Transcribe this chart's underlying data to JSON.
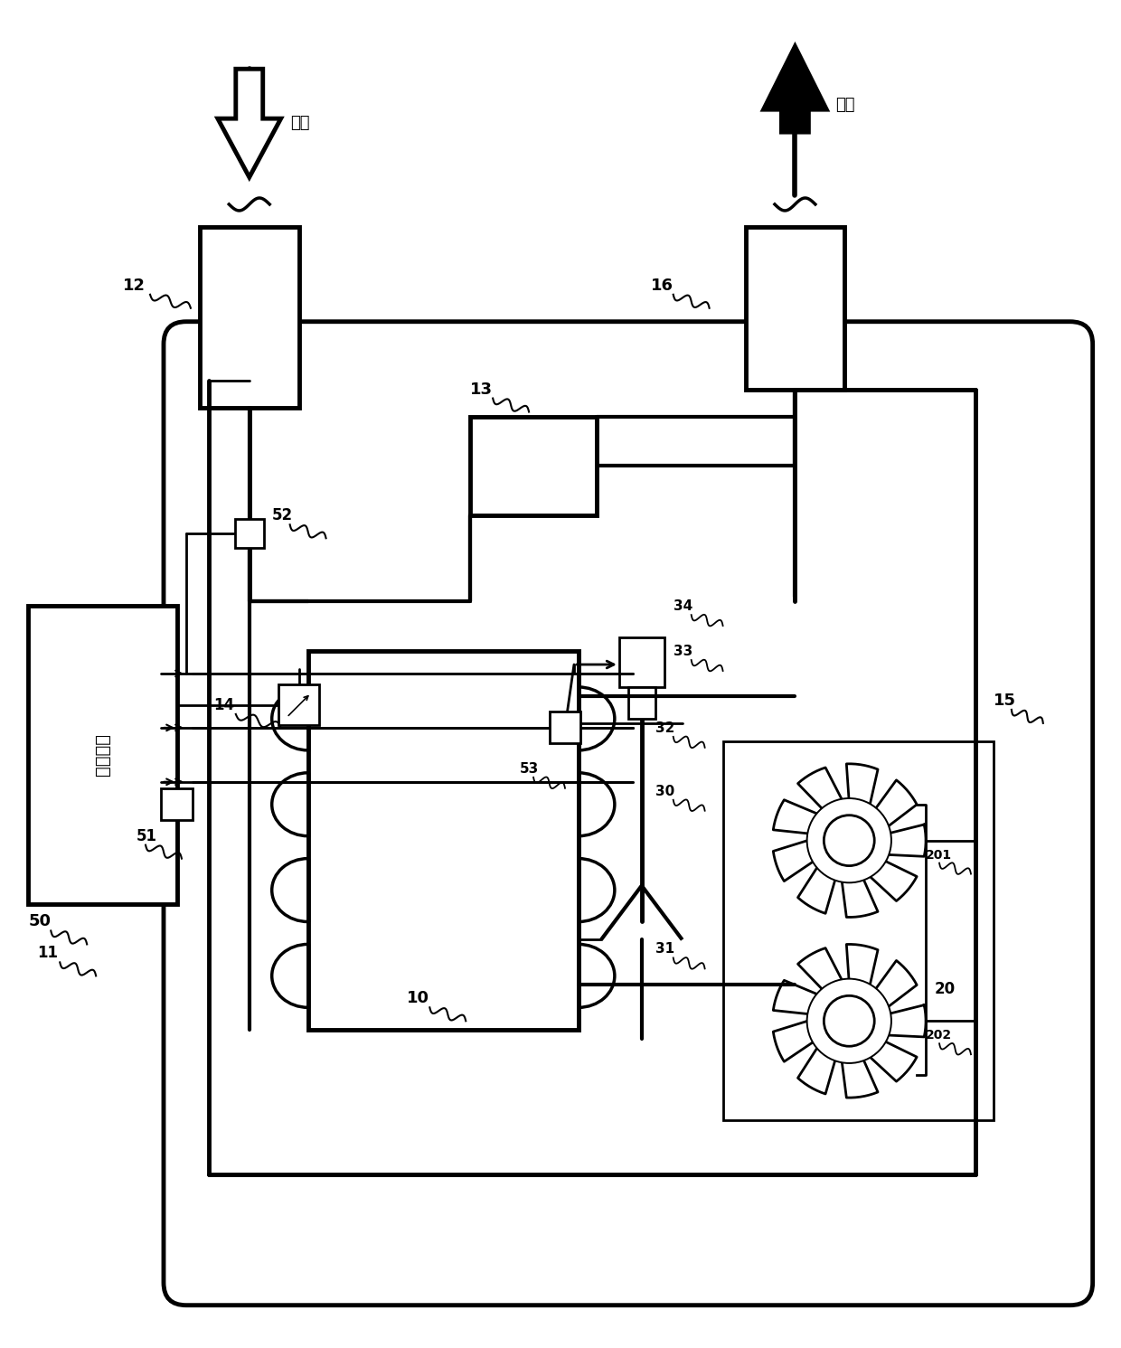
{
  "bg_color": "#ffffff",
  "lc": "#000000",
  "lw": 2.0,
  "tlw": 3.5,
  "fig_width": 12.4,
  "fig_height": 14.91,
  "labels": {
    "intake": "进气",
    "exhaust": "排气",
    "control_device": "控制装置",
    "ref_10": "10",
    "ref_11": "11",
    "ref_12": "12",
    "ref_13": "13",
    "ref_14": "14",
    "ref_15": "15",
    "ref_16": "16",
    "ref_20": "20",
    "ref_30": "30",
    "ref_31": "31",
    "ref_32": "32",
    "ref_33": "33",
    "ref_34": "34",
    "ref_50": "50",
    "ref_51": "51",
    "ref_52": "52",
    "ref_53": "53",
    "ref_201": "201",
    "ref_202": "202"
  }
}
